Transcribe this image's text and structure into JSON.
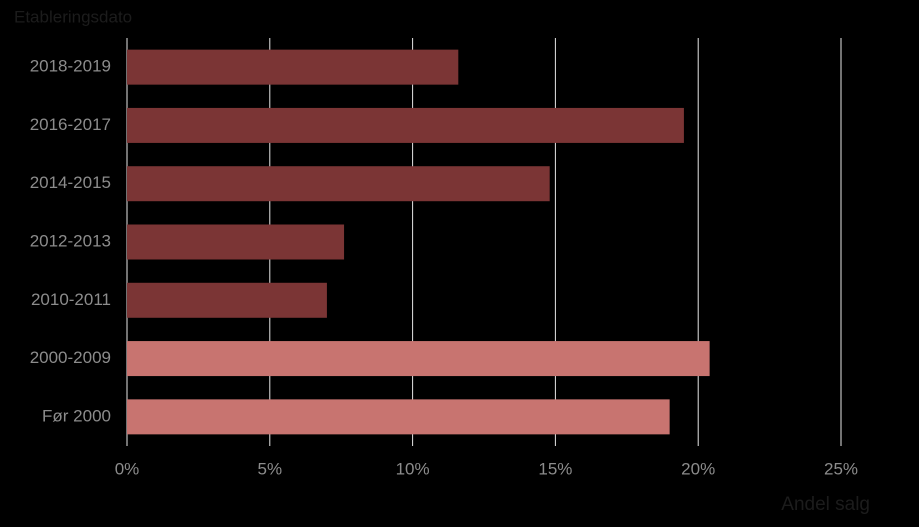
{
  "chart_data": {
    "type": "barh",
    "ylabel": "Etableringsdato",
    "xlabel": "Andel salg",
    "categories": [
      "2018-2019",
      "2016-2017",
      "2014-2015",
      "2012-2013",
      "2010-2011",
      "2000-2009",
      "Før 2000"
    ],
    "values": [
      11.6,
      19.5,
      14.8,
      7.6,
      7.0,
      20.4,
      19.0
    ],
    "colors": [
      "#7b3535",
      "#7b3535",
      "#7b3535",
      "#7b3535",
      "#7b3535",
      "#c87470",
      "#c87470"
    ],
    "xlim": [
      0,
      25
    ],
    "xticks": [
      {
        "value": 0,
        "label": "0%"
      },
      {
        "value": 5,
        "label": "5%"
      },
      {
        "value": 10,
        "label": "10%"
      },
      {
        "value": 15,
        "label": "15%"
      },
      {
        "value": 20,
        "label": "20%"
      },
      {
        "value": 25,
        "label": "25%"
      }
    ],
    "grid": true
  }
}
